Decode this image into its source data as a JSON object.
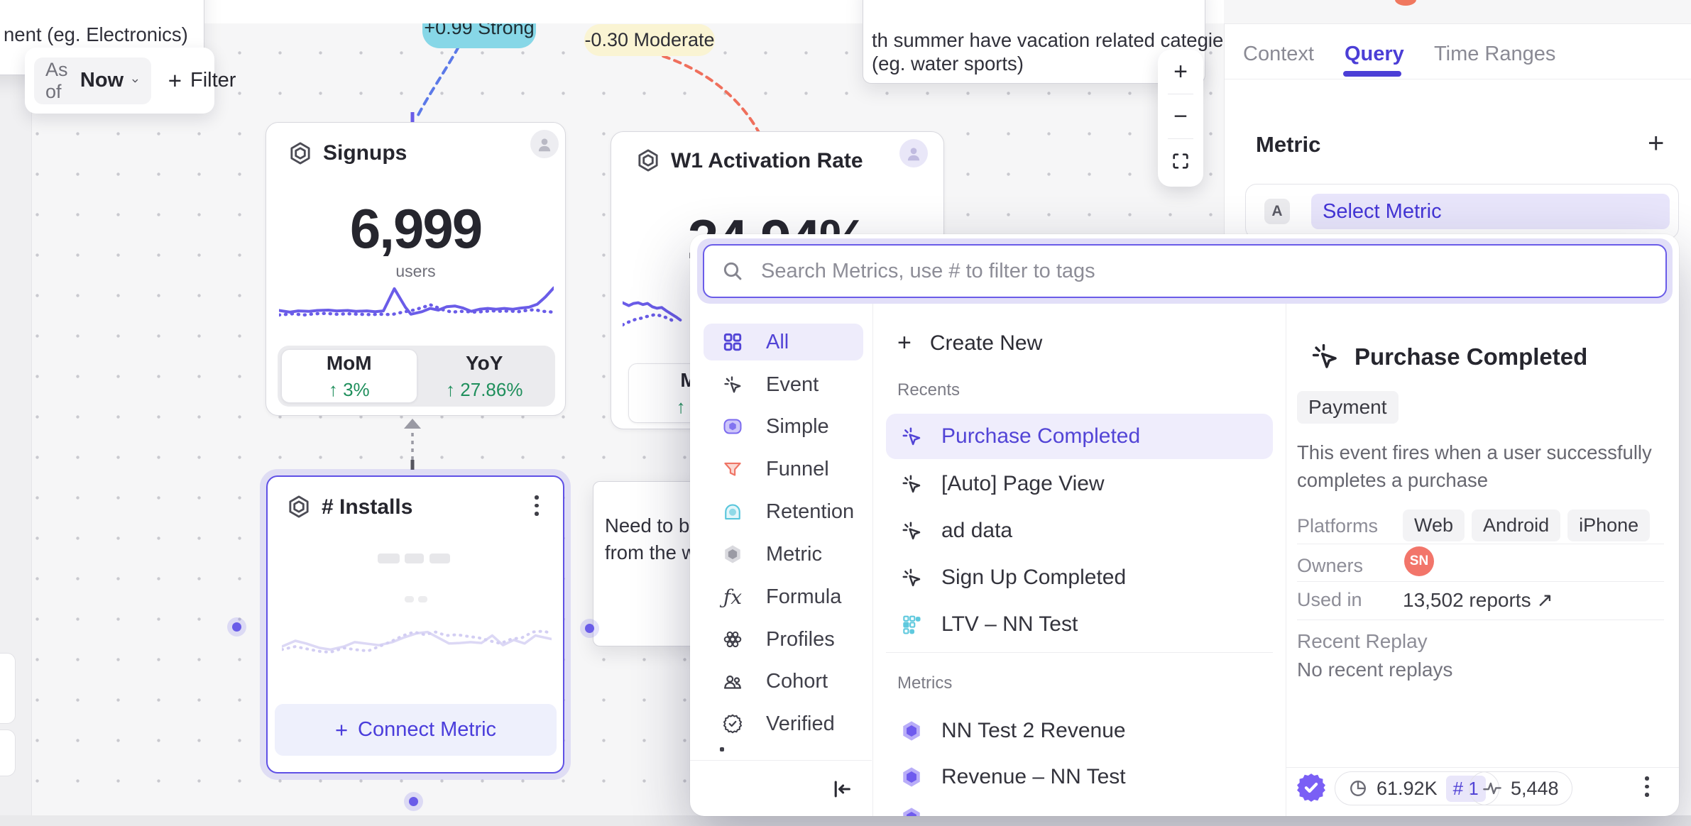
{
  "board": {
    "notes": {
      "electronics": {
        "text": "nent  (eg. Electronics)"
      },
      "summer": {
        "line1": "th summer have vacation related categies",
        "line2": "(eg. water sports)"
      },
      "bring": {
        "line1": "Need to brin",
        "line2": "from the wa"
      }
    },
    "toolbar": {
      "as_of_label": "As of",
      "as_of_value": "Now",
      "plus": "+",
      "filter_label": "Filter"
    },
    "badges": {
      "strong": "+0.99 Strong",
      "moderate": "-0.30 Moderate"
    },
    "cards": {
      "signups": {
        "title": "Signups",
        "value": "6,999",
        "unit": "users",
        "toggle": [
          {
            "label": "MoM",
            "delta": "↑ 3%"
          },
          {
            "label": "YoY",
            "delta": "↑ 27.86%"
          }
        ],
        "spark_solid": [
          [
            0,
            63
          ],
          [
            4,
            67
          ],
          [
            7,
            64
          ],
          [
            11,
            65
          ],
          [
            14,
            63
          ],
          [
            18,
            62
          ],
          [
            21,
            64
          ],
          [
            25,
            63
          ],
          [
            28,
            65
          ],
          [
            32,
            64
          ],
          [
            35,
            66
          ],
          [
            38,
            64
          ],
          [
            42,
            10
          ],
          [
            46,
            55
          ],
          [
            48,
            72
          ],
          [
            52,
            66
          ],
          [
            55,
            58
          ],
          [
            58,
            62
          ],
          [
            61,
            54
          ],
          [
            64,
            52
          ],
          [
            67,
            57
          ],
          [
            70,
            65
          ],
          [
            73,
            60
          ],
          [
            76,
            58
          ],
          [
            79,
            60
          ],
          [
            82,
            58
          ],
          [
            85,
            60
          ],
          [
            88,
            57
          ],
          [
            91,
            55
          ],
          [
            94,
            48
          ],
          [
            97,
            30
          ],
          [
            100,
            8
          ]
        ],
        "spark_dotted": [
          [
            0,
            74
          ],
          [
            5,
            71
          ],
          [
            9,
            74
          ],
          [
            13,
            71
          ],
          [
            17,
            70
          ],
          [
            21,
            72
          ],
          [
            25,
            71
          ],
          [
            29,
            72
          ],
          [
            33,
            73
          ],
          [
            37,
            72
          ],
          [
            41,
            73
          ],
          [
            45,
            67
          ],
          [
            49,
            62
          ],
          [
            53,
            54
          ],
          [
            55,
            49
          ],
          [
            57,
            54
          ],
          [
            60,
            62
          ],
          [
            63,
            67
          ],
          [
            66,
            65
          ],
          [
            69,
            66
          ],
          [
            72,
            67
          ],
          [
            75,
            65
          ],
          [
            78,
            64
          ],
          [
            81,
            65
          ],
          [
            84,
            64
          ],
          [
            87,
            66
          ],
          [
            90,
            63
          ],
          [
            93,
            61
          ],
          [
            96,
            65
          ],
          [
            100,
            67
          ]
        ]
      },
      "activation": {
        "title": "W1 Activation Rate",
        "value": "24.94%",
        "toggle_partial_label": "M",
        "toggle_partial_delta": "↑ 3",
        "spark_solid": [
          [
            0,
            28
          ],
          [
            8,
            36
          ],
          [
            14,
            30
          ],
          [
            20,
            28
          ],
          [
            26,
            33
          ],
          [
            32,
            30
          ],
          [
            38,
            39
          ],
          [
            44,
            43
          ],
          [
            50,
            41
          ],
          [
            56,
            50
          ],
          [
            62,
            58
          ],
          [
            68,
            66
          ],
          [
            74,
            75
          ]
        ],
        "spark_dotted": [
          [
            0,
            88
          ],
          [
            6,
            82
          ],
          [
            12,
            77
          ],
          [
            18,
            72
          ],
          [
            24,
            70
          ],
          [
            30,
            66
          ],
          [
            36,
            63
          ],
          [
            42,
            60
          ],
          [
            48,
            63
          ],
          [
            54,
            67
          ],
          [
            60,
            72
          ],
          [
            66,
            79
          ]
        ]
      },
      "installs": {
        "title": "# Installs",
        "plus": "+",
        "connect_label": "Connect Metric",
        "spark_solid": [
          [
            0,
            55
          ],
          [
            5,
            42
          ],
          [
            9,
            48
          ],
          [
            14,
            58
          ],
          [
            18,
            62
          ],
          [
            23,
            55
          ],
          [
            27,
            45
          ],
          [
            31,
            48
          ],
          [
            36,
            52
          ],
          [
            41,
            45
          ],
          [
            45,
            35
          ],
          [
            50,
            25
          ],
          [
            54,
            22
          ],
          [
            58,
            35
          ],
          [
            62,
            48
          ],
          [
            66,
            47
          ],
          [
            70,
            45
          ],
          [
            74,
            47
          ],
          [
            78,
            30
          ],
          [
            82,
            52
          ],
          [
            86,
            40
          ],
          [
            90,
            48
          ],
          [
            94,
            30
          ],
          [
            100,
            38
          ]
        ],
        "spark_dotted": [
          [
            0,
            62
          ],
          [
            5,
            55
          ],
          [
            9,
            60
          ],
          [
            14,
            66
          ],
          [
            18,
            68
          ],
          [
            23,
            58
          ],
          [
            27,
            62
          ],
          [
            32,
            65
          ],
          [
            36,
            55
          ],
          [
            40,
            45
          ],
          [
            45,
            30
          ],
          [
            49,
            22
          ],
          [
            53,
            28
          ],
          [
            57,
            22
          ],
          [
            61,
            30
          ],
          [
            65,
            28
          ],
          [
            69,
            32
          ],
          [
            73,
            35
          ],
          [
            77,
            42
          ],
          [
            81,
            48
          ],
          [
            85,
            38
          ],
          [
            89,
            35
          ],
          [
            93,
            22
          ],
          [
            97,
            20
          ],
          [
            100,
            25
          ]
        ]
      }
    }
  },
  "zoom_controls": {
    "zoom_in": "+",
    "zoom_out": "−"
  },
  "side_panel": {
    "tabs": [
      {
        "label": "Context"
      },
      {
        "label": "Query"
      },
      {
        "label": "Time Ranges"
      }
    ],
    "metric_heading": "Metric",
    "add": "+",
    "select_row": {
      "badge": "A",
      "label": "Select Metric"
    }
  },
  "popup": {
    "search": {
      "placeholder": "Search Metrics, use # to filter to tags"
    },
    "categories": [
      {
        "label": "All"
      },
      {
        "label": "Event"
      },
      {
        "label": "Simple"
      },
      {
        "label": "Funnel"
      },
      {
        "label": "Retention"
      },
      {
        "label": "Metric"
      },
      {
        "label": "Formula"
      },
      {
        "label": "Profiles"
      },
      {
        "label": "Cohort"
      },
      {
        "label": "Verified"
      }
    ],
    "plus": "+",
    "create_new": "Create New",
    "sections": {
      "recents": "Recents",
      "metrics": "Metrics"
    },
    "recents": [
      {
        "label": "Purchase Completed"
      },
      {
        "label": "[Auto] Page View"
      },
      {
        "label": "ad data"
      },
      {
        "label": "Sign Up Completed"
      },
      {
        "label": "LTV – NN Test"
      }
    ],
    "metrics": [
      {
        "label": "NN Test 2 Revenue"
      },
      {
        "label": "Revenue – NN Test"
      }
    ],
    "detail": {
      "title": "Purchase Completed",
      "tag": "Payment",
      "description": "This event fires when a user successfully completes a purchase",
      "platforms_label": "Platforms",
      "platforms": [
        "Web",
        "Android",
        "iPhone"
      ],
      "owners_label": "Owners",
      "owner_initials": "SN",
      "used_in_label": "Used in",
      "used_in_value": "13,502 reports ↗",
      "replay_label": "Recent Replay",
      "replay_value": "No recent replays",
      "footer": {
        "volume": "61.92K",
        "rank": "# 1",
        "queries": "5,448"
      }
    }
  }
}
